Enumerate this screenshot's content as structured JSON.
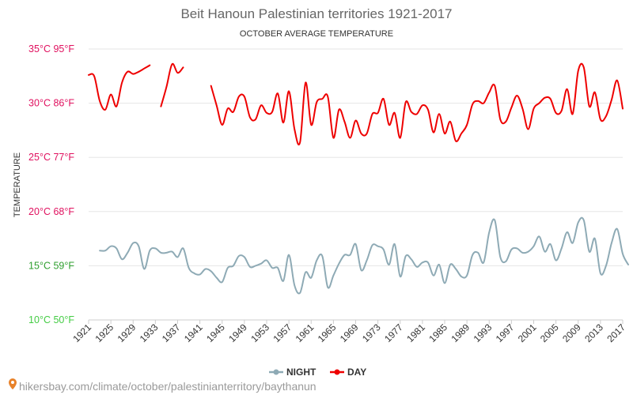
{
  "chart_data": {
    "type": "line",
    "title": "Beit Hanoun Palestinian territories 1921-2017",
    "subtitle": "OCTOBER AVERAGE TEMPERATURE",
    "ylabel": "TEMPERATURE",
    "xlim": [
      1921,
      2017
    ],
    "ylim": [
      10,
      35
    ],
    "x_ticks": [
      1921,
      1925,
      1929,
      1933,
      1937,
      1941,
      1945,
      1949,
      1953,
      1957,
      1961,
      1965,
      1969,
      1973,
      1977,
      1981,
      1985,
      1989,
      1993,
      1997,
      2001,
      2005,
      2009,
      2013,
      2017
    ],
    "x_tick_labels": [
      "1921",
      "1925",
      "1929",
      "1933",
      "1937",
      "1941",
      "1945",
      "1949",
      "1953",
      "1957",
      "1961",
      "1965",
      "1969",
      "1973",
      "1977",
      "1981",
      "1985",
      "1989",
      "1993",
      "1997",
      "2001",
      "2005",
      "2009",
      "2013",
      "2017"
    ],
    "y_ticks": [
      {
        "value": 35,
        "label": "35°C 95°F",
        "color": "#e0115f"
      },
      {
        "value": 30,
        "label": "30°C 86°F",
        "color": "#e0115f"
      },
      {
        "value": 25,
        "label": "25°C 77°F",
        "color": "#e0115f"
      },
      {
        "value": 20,
        "label": "20°C 68°F",
        "color": "#e0115f"
      },
      {
        "value": 15,
        "label": "15°C 59°F",
        "color": "#2e9e2e"
      },
      {
        "value": 10,
        "label": "10°C 50°F",
        "color": "#44cc44"
      }
    ],
    "grid": true,
    "legend_position": "bottom-center",
    "series": [
      {
        "name": "NIGHT",
        "color": "#8eaab5",
        "segments": [
          {
            "start": 1923,
            "values": [
              16.4,
              16.4,
              16.8,
              16.6,
              15.6,
              16.2,
              17.1,
              16.8,
              14.7,
              16.4,
              16.6,
              16.2,
              16.2,
              16.3,
              15.8,
              16.6,
              14.8,
              14.3,
              14.2,
              14.7,
              14.5,
              13.9,
              13.5,
              14.8,
              15.0,
              15.9,
              15.8,
              14.9,
              15.0,
              15.2,
              15.5,
              14.8,
              14.8,
              13.6,
              16.0,
              13.2,
              12.5,
              14.4,
              13.9,
              15.5,
              15.9,
              13.0,
              14.1,
              15.2,
              16.0,
              16.0,
              17.0,
              14.6,
              15.5,
              16.9,
              16.8,
              16.5,
              15.1,
              17.0,
              14.0,
              15.9,
              15.6,
              14.9,
              15.3,
              15.3,
              14.1,
              15.1,
              13.4,
              15.1,
              14.7,
              14.0,
              14.1,
              16.0,
              16.2,
              15.3,
              18.1,
              19.2,
              15.8,
              15.4,
              16.5,
              16.6,
              16.2,
              16.3,
              16.8,
              17.7,
              16.3,
              17.0,
              15.5,
              16.6,
              18.1,
              17.1,
              19.0,
              19.2,
              16.3,
              17.5,
              14.3,
              15.0,
              17.1,
              18.4,
              16.1,
              15.1
            ]
          }
        ]
      },
      {
        "name": "DAY",
        "color": "#ee0000",
        "segments": [
          {
            "start": 1921,
            "values": [
              32.6,
              32.5,
              30.2,
              29.4,
              30.8,
              29.7,
              31.9,
              32.9,
              32.7,
              32.9,
              33.2,
              33.5
            ]
          },
          {
            "start": 1934,
            "values": [
              29.7,
              31.5,
              33.6,
              32.8,
              33.3
            ]
          },
          {
            "start": 1943,
            "values": [
              31.6,
              29.8,
              28.0,
              29.5,
              29.2,
              30.6,
              30.6,
              28.7,
              28.5,
              29.8,
              29.1,
              29.2,
              30.9,
              28.2,
              31.1,
              27.6,
              26.4,
              31.9,
              28.0,
              30.1,
              30.4,
              30.6,
              26.8,
              29.4,
              28.3,
              26.8,
              28.4,
              27.2,
              27.2,
              29.0,
              29.1,
              30.4,
              28.0,
              29.1,
              26.8,
              30.1,
              29.2,
              29.0,
              29.8,
              29.4,
              27.3,
              29.0,
              27.2,
              28.3,
              26.5,
              27.2,
              28.0,
              29.9,
              30.2,
              30.0,
              31.0,
              31.6,
              28.5,
              28.3,
              29.6,
              30.7,
              29.5,
              27.6,
              29.5,
              30.0,
              30.5,
              30.4,
              29.1,
              29.3,
              31.3,
              29.0,
              33.0,
              33.3,
              29.7,
              31.0,
              28.5,
              28.8,
              30.3,
              32.1,
              29.5
            ]
          }
        ]
      }
    ]
  },
  "legend": {
    "night_label": "NIGHT",
    "day_label": "DAY"
  },
  "source": {
    "text": "hikersbay.com/climate/october/palestinianterritory/baythanun"
  }
}
